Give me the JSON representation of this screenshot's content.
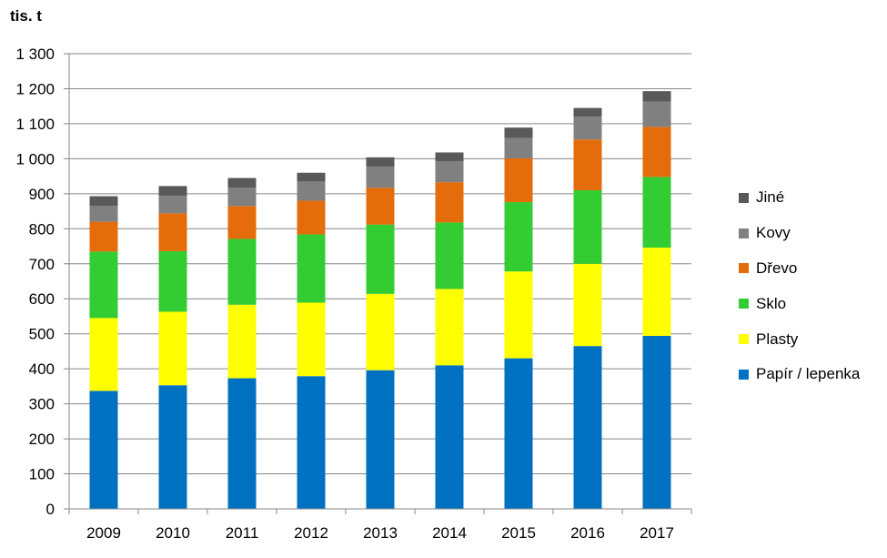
{
  "chart_data": {
    "type": "bar",
    "stacked": true,
    "y_unit_label": "tis. t",
    "categories": [
      "2009",
      "2010",
      "2011",
      "2012",
      "2013",
      "2014",
      "2015",
      "2016",
      "2017"
    ],
    "ylim": [
      0,
      1300
    ],
    "y_ticks": [
      0,
      100,
      200,
      300,
      400,
      500,
      600,
      700,
      800,
      900,
      1000,
      1100,
      1200,
      1300
    ],
    "y_tick_labels": [
      "0",
      "100",
      "200",
      "300",
      "400",
      "500",
      "600",
      "700",
      "800",
      "900",
      "1 000",
      "1 100",
      "1 200",
      "1 300"
    ],
    "grid": true,
    "legend_position": "right",
    "series": [
      {
        "name": "Papír / lepenka",
        "color": "#0070C0",
        "values": [
          337,
          353,
          373,
          379,
          396,
          410,
          430,
          465,
          494
        ]
      },
      {
        "name": "Plasty",
        "color": "#FFFF00",
        "values": [
          208,
          210,
          210,
          210,
          218,
          218,
          248,
          235,
          252
        ]
      },
      {
        "name": "Sklo",
        "color": "#33CC33",
        "values": [
          190,
          173,
          188,
          195,
          198,
          190,
          198,
          210,
          202
        ]
      },
      {
        "name": "Dřevo",
        "color": "#E46C0A",
        "values": [
          85,
          108,
          94,
          96,
          105,
          115,
          125,
          145,
          143
        ]
      },
      {
        "name": "Kovy",
        "color": "#808080",
        "values": [
          45,
          50,
          52,
          55,
          60,
          60,
          58,
          65,
          72
        ]
      },
      {
        "name": "Jiné",
        "color": "#595959",
        "values": [
          28,
          28,
          28,
          25,
          27,
          25,
          30,
          25,
          30
        ]
      }
    ]
  }
}
